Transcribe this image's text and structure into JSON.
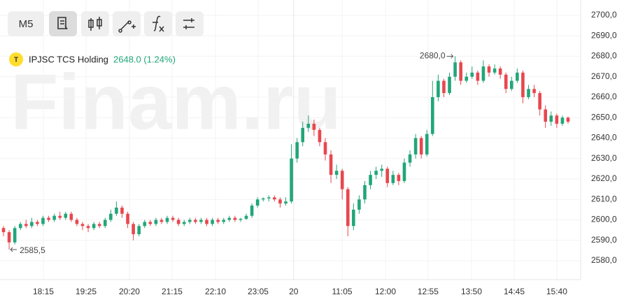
{
  "chart_data": {
    "type": "candlestick",
    "watermark": "Finam.ru",
    "toolbar": {
      "interval": "M5"
    },
    "legend": {
      "logo": "T",
      "symbol": "IPJSC TCS Holding",
      "price": "2648.0 (1.24%)"
    },
    "up_color": "#22a679",
    "down_color": "#e8474f",
    "grid": true,
    "open": [
      2596,
      2594,
      2589,
      2596,
      2598,
      2597,
      2599,
      2598,
      2601,
      2600,
      2602,
      2601,
      2603,
      2600,
      2598,
      2597,
      2596,
      2598,
      2597,
      2600,
      2603,
      2606,
      2603,
      2598,
      2593,
      2597,
      2599,
      2598,
      2600,
      2599,
      2601,
      2600,
      2598,
      2599,
      2600,
      2599,
      2600,
      2598,
      2600,
      2599,
      2600,
      2601,
      2600,
      2600.5,
      2602,
      2607,
      2610,
      2610.5,
      2611,
      2610,
      2608,
      2609,
      2630,
      2638,
      2645,
      2647,
      2644,
      2638,
      2632,
      2622,
      2624,
      2615,
      2597,
      2605,
      2610,
      2617,
      2622,
      2624,
      2625,
      2618,
      2622,
      2619,
      2628,
      2632,
      2640,
      2632,
      2642,
      2660,
      2668,
      2662,
      2670,
      2677,
      2668,
      2670,
      2672,
      2668,
      2675,
      2672,
      2674,
      2671,
      2664,
      2668,
      2672,
      2660,
      2664,
      2662,
      2654,
      2648,
      2651,
      2647,
      2650
    ],
    "high": [
      2597,
      2595,
      2597,
      2599,
      2600,
      2601,
      2600,
      2602,
      2602,
      2603,
      2604,
      2604,
      2604,
      2601,
      2599,
      2598,
      2599,
      2599,
      2601,
      2605,
      2609,
      2607,
      2604,
      2599,
      2598,
      2600,
      2600,
      2601,
      2601,
      2602,
      2602,
      2601,
      2600,
      2601,
      2601,
      2601,
      2601,
      2601,
      2601,
      2601,
      2602,
      2602,
      2601,
      2603,
      2608,
      2611,
      2611,
      2612,
      2612,
      2611,
      2611,
      2637,
      2640,
      2648,
      2651,
      2649,
      2645,
      2640,
      2634,
      2627,
      2625,
      2616,
      2608,
      2612,
      2619,
      2624,
      2626,
      2627,
      2626,
      2624,
      2623,
      2630,
      2634,
      2642,
      2641,
      2644,
      2668,
      2671,
      2669,
      2672,
      2680,
      2678,
      2672,
      2675,
      2673,
      2678,
      2676,
      2676,
      2675,
      2672,
      2670,
      2674,
      2673,
      2666,
      2666,
      2663,
      2656,
      2653,
      2652,
      2651,
      2650.5
    ],
    "low": [
      2592,
      2585.5,
      2588,
      2595,
      2596,
      2596,
      2597,
      2597,
      2599,
      2599,
      2600,
      2600,
      2599,
      2597,
      2595,
      2594,
      2595,
      2596,
      2596,
      2599,
      2602,
      2601,
      2596,
      2590,
      2592,
      2596,
      2597,
      2597,
      2598,
      2598,
      2599,
      2597,
      2597,
      2598,
      2598,
      2598,
      2597,
      2597,
      2598,
      2598,
      2599,
      2599,
      2599,
      2600,
      2601,
      2606,
      2609,
      2609,
      2609,
      2606,
      2607,
      2608,
      2628,
      2636,
      2643,
      2641,
      2636,
      2629,
      2618,
      2620,
      2610,
      2592,
      2595,
      2603,
      2608,
      2615,
      2620,
      2621,
      2616,
      2617,
      2617,
      2618,
      2626,
      2630,
      2630,
      2631,
      2641,
      2658,
      2660,
      2661,
      2668,
      2666,
      2667,
      2669,
      2666,
      2667,
      2670,
      2671,
      2669,
      2662,
      2663,
      2667,
      2657,
      2659,
      2660,
      2651,
      2645,
      2646,
      2645,
      2646,
      2647
    ],
    "close": [
      2594,
      2589,
      2596,
      2598,
      2597,
      2599,
      2598,
      2601,
      2600,
      2602,
      2601,
      2603,
      2600,
      2598,
      2597,
      2596,
      2598,
      2597,
      2600,
      2603,
      2606,
      2603,
      2598,
      2593,
      2597,
      2599,
      2598,
      2600,
      2599,
      2601,
      2600,
      2598,
      2599,
      2600,
      2599,
      2600,
      2598,
      2600,
      2599,
      2600,
      2601,
      2600,
      2600.5,
      2602,
      2607,
      2610,
      2610.5,
      2611,
      2610,
      2608,
      2609,
      2630,
      2638,
      2645,
      2647,
      2644,
      2638,
      2632,
      2622,
      2624,
      2615,
      2597,
      2605,
      2610,
      2617,
      2622,
      2624,
      2625,
      2618,
      2622,
      2619,
      2628,
      2632,
      2640,
      2632,
      2642,
      2660,
      2668,
      2662,
      2670,
      2677,
      2668,
      2670,
      2672,
      2668,
      2675,
      2672,
      2674,
      2671,
      2664,
      2668,
      2672,
      2660,
      2664,
      2662,
      2654,
      2648,
      2651,
      2647,
      2650,
      2648
    ],
    "xlim": [
      -0.62,
      102.23
    ],
    "xticks": [
      {
        "value": 7.06,
        "label": "18:15"
      },
      {
        "value": 14.62,
        "label": "19:25"
      },
      {
        "value": 22.3,
        "label": "20:20"
      },
      {
        "value": 29.86,
        "label": "21:15"
      },
      {
        "value": 37.55,
        "label": "22:10"
      },
      {
        "value": 45.1,
        "label": "23:05"
      },
      {
        "value": 51.4,
        "label": "20"
      },
      {
        "value": 59.98,
        "label": "11:05"
      },
      {
        "value": 67.66,
        "label": "12:00"
      },
      {
        "value": 75.2,
        "label": "12:55"
      },
      {
        "value": 82.9,
        "label": "13:50"
      },
      {
        "value": 90.46,
        "label": "14:45"
      },
      {
        "value": 98.0,
        "label": "15:40"
      }
    ],
    "ylim": [
      2572.5,
      2705.1
    ],
    "yticks": [
      {
        "value": 2580,
        "label": "2580,0"
      },
      {
        "value": 2590,
        "label": "2590,0"
      },
      {
        "value": 2600,
        "label": "2600,0"
      },
      {
        "value": 2610,
        "label": "2610,0"
      },
      {
        "value": 2620,
        "label": "2620,0"
      },
      {
        "value": 2630,
        "label": "2630,0"
      },
      {
        "value": 2640,
        "label": "2640,0"
      },
      {
        "value": 2650,
        "label": "2650,0"
      },
      {
        "value": 2660,
        "label": "2660,0"
      },
      {
        "value": 2670,
        "label": "2670,0"
      },
      {
        "value": 2680,
        "label": "2680,0"
      },
      {
        "value": 2690,
        "label": "2690,0"
      },
      {
        "value": 2700,
        "label": "2700,0"
      }
    ],
    "annotations": [
      {
        "value": 2680,
        "label": "2680,0",
        "index": 80
      },
      {
        "value": 2585.5,
        "label": "2585,5",
        "index": 1
      }
    ]
  }
}
